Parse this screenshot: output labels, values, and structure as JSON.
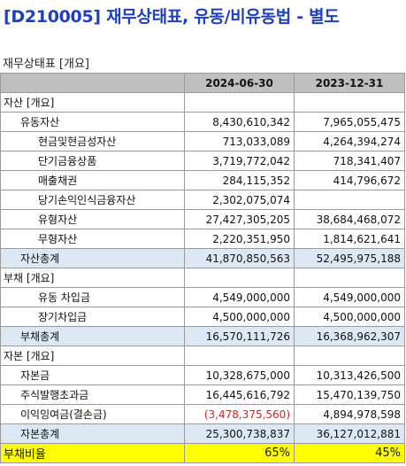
{
  "title": "[D210005] 재무상태표, 유동/비유동법 - 별도",
  "subtitle": "재무상태표 [개요]",
  "columns": [
    "2024-06-30",
    "2023-12-31"
  ],
  "rows": [
    {
      "label": "자산 [개요]",
      "level": 0,
      "v1": "",
      "v2": "",
      "type": "section"
    },
    {
      "label": "유동자산",
      "level": 1,
      "v1": "8,430,610,342",
      "v2": "7,965,055,475",
      "type": "item"
    },
    {
      "label": "현금및현금성자산",
      "level": 2,
      "v1": "713,033,089",
      "v2": "4,264,394,274",
      "type": "item"
    },
    {
      "label": "단기금융상품",
      "level": 2,
      "v1": "3,719,772,042",
      "v2": "718,341,407",
      "type": "item"
    },
    {
      "label": "매출채권",
      "level": 2,
      "v1": "284,115,352",
      "v2": "414,796,672",
      "type": "item"
    },
    {
      "label": "당기손익인식금융자산",
      "level": 2,
      "v1": "2,302,075,074",
      "v2": "",
      "type": "item"
    },
    {
      "label": "유형자산",
      "level": 2,
      "v1": "27,427,305,205",
      "v2": "38,684,468,072",
      "type": "item"
    },
    {
      "label": "무형자산",
      "level": 2,
      "v1": "2,220,351,950",
      "v2": "1,814,621,641",
      "type": "item"
    },
    {
      "label": "자산총계",
      "level": 1,
      "v1": "41,870,850,563",
      "v2": "52,495,975,188",
      "type": "total"
    },
    {
      "label": "부채 [개요]",
      "level": 0,
      "v1": "",
      "v2": "",
      "type": "section"
    },
    {
      "label": "유동 차입금",
      "level": 2,
      "v1": "4,549,000,000",
      "v2": "4,549,000,000",
      "type": "item"
    },
    {
      "label": "장기차입금",
      "level": 2,
      "v1": "4,500,000,000",
      "v2": "4,500,000,000",
      "type": "item"
    },
    {
      "label": "부채총계",
      "level": 1,
      "v1": "16,570,111,726",
      "v2": "16,368,962,307",
      "type": "total"
    },
    {
      "label": "자본 [개요]",
      "level": 0,
      "v1": "",
      "v2": "",
      "type": "section"
    },
    {
      "label": "자본금",
      "level": 1,
      "v1": "10,328,675,000",
      "v2": "10,313,426,500",
      "type": "item"
    },
    {
      "label": "주식발행초과금",
      "level": 1,
      "v1": "16,445,616,792",
      "v2": "15,470,139,750",
      "type": "item"
    },
    {
      "label": "이익잉여금(결손금)",
      "level": 1,
      "v1": "(3,478,375,560)",
      "v2": "4,894,978,598",
      "type": "item",
      "negative1": true
    },
    {
      "label": "자본총계",
      "level": 1,
      "v1": "25,300,738,837",
      "v2": "36,127,012,881",
      "type": "total"
    },
    {
      "label": "부채비율",
      "level": 0,
      "v1": "65%",
      "v2": "45%",
      "type": "ratio"
    }
  ],
  "colors": {
    "title": "#1f3fbf",
    "header_bg": "#bfbfbf",
    "total_bg": "#dde8f5",
    "ratio_bg": "#ffff00",
    "negative": "#e02020"
  }
}
